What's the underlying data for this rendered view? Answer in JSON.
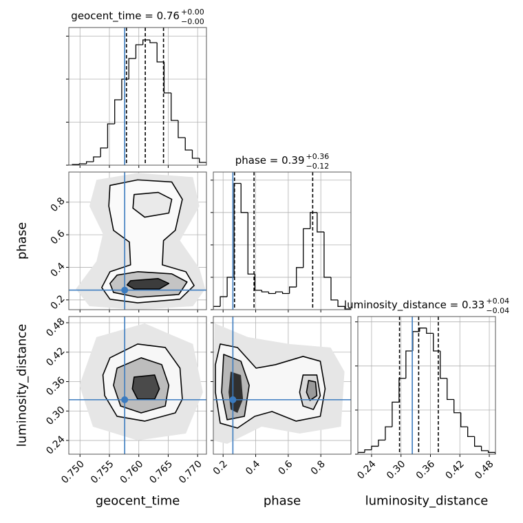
{
  "chart_data": {
    "type": "corner",
    "truth_color": "#3b7bbf",
    "quantile_color": "#000000",
    "line_color": "#000000",
    "grid": true,
    "parameters": [
      {
        "name": "geocent_time",
        "title": "geocent_time = 0.76",
        "title_upper": "+0.00",
        "title_lower": "−0.00",
        "truth": 0.7576,
        "quantiles": [
          0.7579,
          0.7611,
          0.7642
        ],
        "lim": [
          0.7481,
          0.7715
        ],
        "ticks": [
          {
            "value": 0.75,
            "label": "0.750"
          },
          0.755,
          {
            "value": 0.76,
            "label": "0.760"
          },
          0.765,
          {
            "value": 0.77,
            "label": "0.770"
          }
        ],
        "hist": {
          "bins": [
            0.7475,
            0.7487,
            0.7499,
            0.7511,
            0.7523,
            0.7535,
            0.7547,
            0.7559,
            0.7571,
            0.7583,
            0.7595,
            0.7607,
            0.7619,
            0.7631,
            0.7643,
            0.7655,
            0.7667,
            0.7679,
            0.7691,
            0.7703,
            0.7715
          ],
          "counts": [
            0,
            0.8,
            1.6,
            4,
            9.6,
            20,
            48,
            76,
            100,
            124,
            140,
            145.6,
            142.4,
            120,
            84,
            52,
            32,
            17.6,
            8,
            3.2
          ],
          "ylim": [
            0,
            160
          ],
          "yticks": [
            0,
            50,
            100,
            150
          ]
        }
      },
      {
        "name": "phase",
        "title": "phase = 0.39",
        "title_upper": "+0.36",
        "title_lower": "−0.12",
        "truth": 0.26,
        "quantiles": [
          0.27,
          0.39,
          0.75
        ],
        "lim": [
          0.14,
          0.985
        ],
        "ticks": [
          0.2,
          0.4,
          0.6,
          0.8
        ],
        "hist": {
          "bins": [
            0.14,
            0.1825,
            0.225,
            0.2675,
            0.31,
            0.3525,
            0.395,
            0.4375,
            0.48,
            0.5225,
            0.565,
            0.6075,
            0.65,
            0.6925,
            0.735,
            0.7775,
            0.82,
            0.8625,
            0.905,
            0.9475,
            0.99
          ],
          "counts": [
            0.1,
            0.4,
            1.0,
            3.9,
            3.0,
            1.1,
            0.6,
            0.55,
            0.5,
            0.55,
            0.5,
            0.7,
            1.3,
            2.5,
            3.0,
            2.4,
            1.0,
            0.3,
            0.1,
            0.02
          ],
          "ylim": [
            0,
            4.25
          ],
          "yticks": [
            0,
            1,
            2,
            3,
            4
          ]
        }
      },
      {
        "name": "luminosity_distance",
        "title": "luminosity_distance = 0.33",
        "title_upper": "+0.04",
        "title_lower": "−0.04",
        "truth": 0.323,
        "quantiles": [
          0.297,
          0.336,
          0.376
        ],
        "lim": [
          0.212,
          0.4926
        ],
        "ticks": [
          0.24,
          {
            "value": 0.3,
            "label": "0.30"
          },
          0.36,
          0.42,
          0.48
        ],
        "hist": {
          "bins": [
            0.212,
            0.226,
            0.24,
            0.254,
            0.268,
            0.282,
            0.296,
            0.31,
            0.324,
            0.338,
            0.352,
            0.366,
            0.38,
            0.394,
            0.408,
            0.422,
            0.436,
            0.45,
            0.464,
            0.478,
            0.492
          ],
          "counts": [
            0.2,
            0.5,
            0.9,
            1.6,
            3.1,
            5.9,
            8.6,
            11.7,
            13.9,
            14.3,
            13.7,
            11.7,
            8.6,
            6.2,
            4.7,
            3.1,
            2.0,
            0.9,
            0.4,
            0.2
          ],
          "ylim": [
            0,
            15.6
          ],
          "yticks": [
            0,
            5,
            10,
            15
          ]
        }
      }
    ],
    "pairs": [
      [
        {
          "contours": [
            {
              "fill": "#e6e6e6",
              "line": false,
              "x": [
                0.7528,
                0.7598,
                0.7692,
                0.7703,
                0.767,
                0.7703,
                0.7713,
                0.7692,
                0.7598,
                0.7516,
                0.7493,
                0.7528,
                0.7539,
                0.7516
              ],
              "y": [
                0.937,
                0.979,
                0.954,
                0.776,
                0.564,
                0.394,
                0.267,
                0.161,
                0.14,
                0.161,
                0.267,
                0.437,
                0.606,
                0.776
              ]
            },
            {
              "fill": "#fafafa",
              "line": true,
              "x": [
                0.7551,
                0.7598,
                0.7656,
                0.7674,
                0.7662,
                0.7642,
                0.764,
                0.768,
                0.7694,
                0.767,
                0.7598,
                0.7551,
                0.7537,
                0.7551,
                0.7586,
                0.7584,
                0.7557,
                0.7549
              ],
              "y": [
                0.903,
                0.937,
                0.924,
                0.818,
                0.627,
                0.564,
                0.415,
                0.373,
                0.288,
                0.204,
                0.182,
                0.204,
                0.276,
                0.373,
                0.415,
                0.555,
                0.627,
                0.776
              ]
            },
            {
              "fill": "#eaeaea",
              "line": true,
              "x": [
                0.7592,
                0.7633,
                0.7656,
                0.7651,
                0.761,
                0.759
              ],
              "y": [
                0.847,
                0.86,
                0.818,
                0.733,
                0.708,
                0.763
              ]
            },
            {
              "fill": "#c4c4c4",
              "line": true,
              "x": [
                0.7563,
                0.7598,
                0.7656,
                0.7682,
                0.7668,
                0.7598,
                0.7557,
                0.7551
              ],
              "y": [
                0.352,
                0.373,
                0.36,
                0.31,
                0.233,
                0.216,
                0.246,
                0.301
              ]
            },
            {
              "fill": "#3c3c3c",
              "line": true,
              "x": [
                0.7586,
                0.7633,
                0.7651,
                0.7635,
                0.7592,
                0.758
              ],
              "y": [
                0.318,
                0.331,
                0.301,
                0.267,
                0.267,
                0.292
              ]
            }
          ]
        }
      ],
      [
        {
          "contours": [
            {
              "fill": "#e6e6e6",
              "line": false,
              "x": [
                0.7528,
                0.761,
                0.7692,
                0.7709,
                0.768,
                0.7598,
                0.7522,
                0.7499
              ],
              "y": [
                0.4506,
                0.4787,
                0.4366,
                0.3383,
                0.2541,
                0.2401,
                0.2681,
                0.3524
              ]
            },
            {
              "fill": "#f7f7f7",
              "line": true,
              "x": [
                0.7551,
                0.7598,
                0.7645,
                0.767,
                0.7674,
                0.7662,
                0.761,
                0.7563,
                0.7542,
                0.7539
              ],
              "y": [
                0.4085,
                0.4366,
                0.4295,
                0.3874,
                0.3243,
                0.2962,
                0.2794,
                0.2892,
                0.3313,
                0.3734
              ]
            },
            {
              "fill": "#bdbdbd",
              "line": true,
              "x": [
                0.7563,
                0.7604,
                0.7639,
                0.7651,
                0.7645,
                0.7604,
                0.7569,
                0.7557
              ],
              "y": [
                0.3874,
                0.4085,
                0.3945,
                0.3524,
                0.3102,
                0.2962,
                0.3102,
                0.3524
              ]
            },
            {
              "fill": "#4a4a4a",
              "line": true,
              "x": [
                0.7592,
                0.7627,
                0.7635,
                0.7627,
                0.7598,
                0.7589
              ],
              "y": [
                0.3692,
                0.3734,
                0.3453,
                0.3243,
                0.3243,
                0.3453
              ]
            }
          ]
        },
        {
          "contours": [
            {
              "fill": "#e6e6e6",
              "line": false,
              "x": [
                0.1485,
                0.3519,
                0.6061,
                0.8603,
                0.9451,
                0.9239,
                0.6697,
                0.4366,
                0.2247,
                0.14
              ],
              "y": [
                0.4787,
                0.4506,
                0.4366,
                0.4295,
                0.3804,
                0.2681,
                0.2541,
                0.2681,
                0.233,
                0.2401
              ]
            },
            {
              "fill": "#f7f7f7",
              "line": true,
              "x": [
                0.1824,
                0.2883,
                0.4027,
                0.5214,
                0.6908,
                0.7968,
                0.8264,
                0.7968,
                0.6485,
                0.5002,
                0.3942,
                0.2883,
                0.1824,
                0.1527,
                0.1527
              ],
              "y": [
                0.4366,
                0.4295,
                0.3874,
                0.3945,
                0.4113,
                0.4015,
                0.3453,
                0.2892,
                0.2794,
                0.299,
                0.2892,
                0.2653,
                0.2752,
                0.3383,
                0.3945
              ]
            },
            {
              "fill": "#b8b8b8",
              "line": true,
              "x": [
                0.2036,
                0.3095,
                0.3603,
                0.3307,
                0.2247,
                0.1908
              ],
              "y": [
                0.4155,
                0.4015,
                0.3524,
                0.2892,
                0.2822,
                0.3383
              ]
            },
            {
              "fill": "#dadada",
              "line": true,
              "x": [
                0.6908,
                0.7756,
                0.7968,
                0.7544,
                0.6908,
                0.6697
              ],
              "y": [
                0.3734,
                0.3734,
                0.3313,
                0.3032,
                0.3102,
                0.3383
              ]
            },
            {
              "fill": "#303030",
              "line": false,
              "x": [
                0.2459,
                0.3095,
                0.3222,
                0.2883,
                0.2459,
                0.2332
              ],
              "y": [
                0.3804,
                0.3734,
                0.3243,
                0.2962,
                0.3032,
                0.3383
              ]
            },
            {
              "fill": "#9a9a9a",
              "line": true,
              "x": [
                0.7247,
                0.7671,
                0.7756,
                0.7332,
                0.712
              ],
              "y": [
                0.3622,
                0.3594,
                0.3313,
                0.3215,
                0.3383
              ]
            }
          ]
        }
      ]
    ]
  }
}
